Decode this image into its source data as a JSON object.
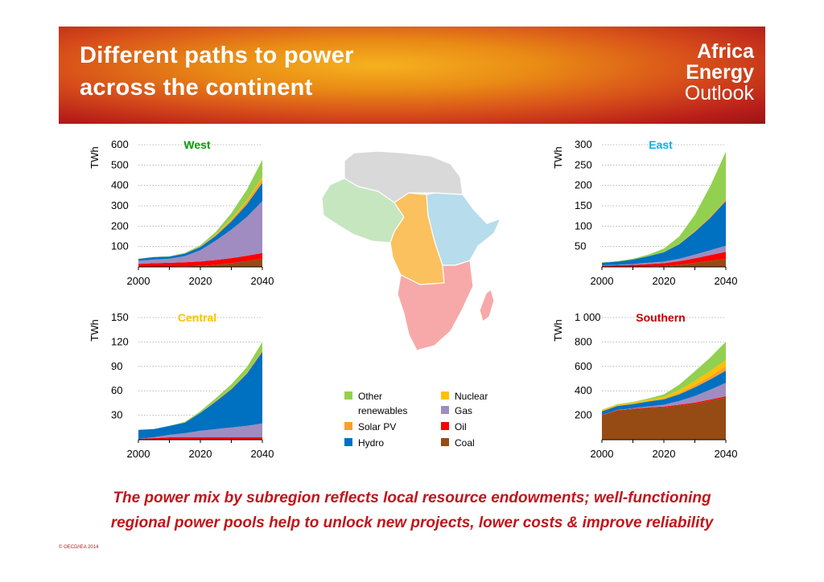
{
  "header": {
    "title_lines": [
      "Different paths to power",
      "across the continent"
    ],
    "logo_lines": [
      "Africa",
      "Energy",
      "Outlook"
    ]
  },
  "legend": {
    "items": [
      {
        "label": "Other renewables",
        "color": "#92d050"
      },
      {
        "label": "Nuclear",
        "color": "#ffc000"
      },
      {
        "label": "Gas",
        "color": "#a08cc0"
      },
      {
        "label": "Solar PV",
        "color": "#f7a12a"
      },
      {
        "label": "Oil",
        "color": "#ff0000"
      },
      {
        "label": "Hydro",
        "color": "#0070c0"
      },
      {
        "label": "Coal",
        "color": "#964b14"
      }
    ]
  },
  "map": {
    "region_colors": {
      "north": "#d9d9d9",
      "west": "#c6e6c0",
      "central": "#fbc15e",
      "east": "#b7dcec",
      "southern": "#f7a9a9"
    }
  },
  "caption_lines": [
    "The power mix by subregion reflects local resource endowments; well-functioning",
    "regional power pools help to unlock new projects, lower costs & improve reliability"
  ],
  "copyright": "© OECD/IEA 2014",
  "chart_data": [
    {
      "type": "area",
      "title": "West",
      "title_color": "#00a000",
      "ylabel": "TWh",
      "xlabel": "",
      "x_ticks": [
        "2000",
        "2020",
        "2040"
      ],
      "y_ticks": [
        {
          "value": 100,
          "label": "100"
        },
        {
          "value": 200,
          "label": "200"
        },
        {
          "value": 300,
          "label": "300"
        },
        {
          "value": 400,
          "label": "400"
        },
        {
          "value": 500,
          "label": "500"
        },
        {
          "value": 600,
          "label": "600"
        }
      ],
      "ylim": [
        0,
        600
      ],
      "xlim": [
        2000,
        2040
      ],
      "x": [
        2000,
        2005,
        2010,
        2015,
        2020,
        2025,
        2030,
        2035,
        2040
      ],
      "series": [
        {
          "name": "Coal",
          "color": "#964b14",
          "values": [
            2,
            2,
            2,
            3,
            5,
            10,
            18,
            28,
            40
          ]
        },
        {
          "name": "Oil",
          "color": "#ff0000",
          "values": [
            13,
            16,
            18,
            20,
            22,
            24,
            25,
            27,
            28
          ]
        },
        {
          "name": "Gas",
          "color": "#a08cc0",
          "values": [
            15,
            18,
            20,
            30,
            55,
            95,
            140,
            190,
            255
          ]
        },
        {
          "name": "Hydro",
          "color": "#0070c0",
          "values": [
            9,
            12,
            10,
            12,
            16,
            24,
            40,
            62,
            90
          ]
        },
        {
          "name": "Solar PV",
          "color": "#f7a12a",
          "values": [
            0,
            0,
            0,
            1,
            2,
            5,
            9,
            14,
            20
          ]
        },
        {
          "name": "Nuclear",
          "color": "#ffc000",
          "values": [
            0,
            0,
            0,
            0,
            0,
            2,
            4,
            6,
            8
          ]
        },
        {
          "name": "Other renewables",
          "color": "#92d050",
          "values": [
            1,
            1,
            2,
            3,
            6,
            12,
            28,
            52,
            85
          ]
        }
      ]
    },
    {
      "type": "area",
      "title": "East",
      "title_color": "#00b0f0",
      "ylabel": "TWh",
      "xlabel": "",
      "x_ticks": [
        "2000",
        "2020",
        "2040"
      ],
      "y_ticks": [
        {
          "value": 50,
          "label": "50"
        },
        {
          "value": 100,
          "label": "100"
        },
        {
          "value": 150,
          "label": "150"
        },
        {
          "value": 200,
          "label": "200"
        },
        {
          "value": 250,
          "label": "250"
        },
        {
          "value": 300,
          "label": "300"
        }
      ],
      "ylim": [
        0,
        300
      ],
      "xlim": [
        2000,
        2040
      ],
      "x": [
        2000,
        2005,
        2010,
        2015,
        2020,
        2025,
        2030,
        2035,
        2040
      ],
      "series": [
        {
          "name": "Coal",
          "color": "#964b14",
          "values": [
            0,
            0,
            0,
            1,
            2,
            5,
            10,
            15,
            20
          ]
        },
        {
          "name": "Oil",
          "color": "#ff0000",
          "values": [
            3,
            4,
            5,
            6,
            7,
            9,
            11,
            14,
            17
          ]
        },
        {
          "name": "Gas",
          "color": "#a08cc0",
          "values": [
            1,
            1,
            2,
            3,
            4,
            6,
            9,
            12,
            15
          ]
        },
        {
          "name": "Hydro",
          "color": "#0070c0",
          "values": [
            6,
            8,
            11,
            16,
            23,
            36,
            56,
            80,
            110
          ]
        },
        {
          "name": "Solar PV",
          "color": "#f7a12a",
          "values": [
            0,
            0,
            0,
            0,
            1,
            1,
            2,
            3,
            4
          ]
        },
        {
          "name": "Nuclear",
          "color": "#ffc000",
          "values": [
            0,
            0,
            0,
            0,
            0,
            0,
            0,
            0,
            0
          ]
        },
        {
          "name": "Other renewables",
          "color": "#92d050",
          "values": [
            1,
            1,
            2,
            4,
            8,
            18,
            40,
            75,
            117
          ]
        }
      ]
    },
    {
      "type": "area",
      "title": "Central",
      "title_color": "#ffc000",
      "ylabel": "TWh",
      "xlabel": "",
      "x_ticks": [
        "2000",
        "2020",
        "2040"
      ],
      "y_ticks": [
        {
          "value": 30,
          "label": "30"
        },
        {
          "value": 60,
          "label": "60"
        },
        {
          "value": 90,
          "label": "90"
        },
        {
          "value": 120,
          "label": "120"
        },
        {
          "value": 150,
          "label": "150"
        }
      ],
      "ylim": [
        0,
        150
      ],
      "xlim": [
        2000,
        2040
      ],
      "x": [
        2000,
        2005,
        2010,
        2015,
        2020,
        2025,
        2030,
        2035,
        2040
      ],
      "series": [
        {
          "name": "Coal",
          "color": "#964b14",
          "values": [
            0,
            0,
            0,
            0,
            0,
            0,
            0,
            0,
            0
          ]
        },
        {
          "name": "Oil",
          "color": "#ff0000",
          "values": [
            1,
            2,
            3,
            3,
            3,
            3,
            3,
            3,
            3
          ]
        },
        {
          "name": "Gas",
          "color": "#a08cc0",
          "values": [
            0,
            1,
            3,
            5,
            8,
            10,
            12,
            14,
            17
          ]
        },
        {
          "name": "Hydro",
          "color": "#0070c0",
          "values": [
            11,
            10,
            11,
            13,
            22,
            34,
            47,
            64,
            88
          ]
        },
        {
          "name": "Solar PV",
          "color": "#f7a12a",
          "values": [
            0,
            0,
            0,
            0,
            0,
            1,
            1,
            1,
            2
          ]
        },
        {
          "name": "Nuclear",
          "color": "#ffc000",
          "values": [
            0,
            0,
            0,
            0,
            0,
            0,
            0,
            0,
            0
          ]
        },
        {
          "name": "Other renewables",
          "color": "#92d050",
          "values": [
            0,
            0,
            0,
            1,
            2,
            3,
            5,
            7,
            10
          ]
        }
      ]
    },
    {
      "type": "area",
      "title": "Southern",
      "title_color": "#c00000",
      "ylabel": "TWh",
      "xlabel": "",
      "x_ticks": [
        "2000",
        "2020",
        "2040"
      ],
      "y_ticks": [
        {
          "value": 200,
          "label": "200"
        },
        {
          "value": 400,
          "label": "400"
        },
        {
          "value": 600,
          "label": "600"
        },
        {
          "value": 800,
          "label": "800"
        },
        {
          "value": 1000,
          "label": "1 000"
        }
      ],
      "ylim": [
        0,
        1000
      ],
      "xlim": [
        2000,
        2040
      ],
      "x": [
        2000,
        2005,
        2010,
        2015,
        2020,
        2025,
        2030,
        2035,
        2040
      ],
      "series": [
        {
          "name": "Coal",
          "color": "#964b14",
          "values": [
            200,
            240,
            250,
            260,
            265,
            280,
            295,
            320,
            345
          ]
        },
        {
          "name": "Oil",
          "color": "#ff0000",
          "values": [
            2,
            3,
            4,
            5,
            6,
            7,
            8,
            9,
            10
          ]
        },
        {
          "name": "Gas",
          "color": "#a08cc0",
          "values": [
            0,
            1,
            3,
            8,
            15,
            30,
            55,
            80,
            110
          ]
        },
        {
          "name": "Hydro",
          "color": "#0070c0",
          "values": [
            30,
            32,
            35,
            40,
            45,
            55,
            70,
            85,
            100
          ]
        },
        {
          "name": "Solar PV",
          "color": "#f7a12a",
          "values": [
            0,
            0,
            0,
            2,
            6,
            12,
            20,
            28,
            35
          ]
        },
        {
          "name": "Nuclear",
          "color": "#ffc000",
          "values": [
            12,
            12,
            12,
            12,
            14,
            22,
            32,
            42,
            52
          ]
        },
        {
          "name": "Other renewables",
          "color": "#92d050",
          "values": [
            2,
            3,
            5,
            10,
            20,
            45,
            80,
            110,
            150
          ]
        }
      ]
    }
  ]
}
